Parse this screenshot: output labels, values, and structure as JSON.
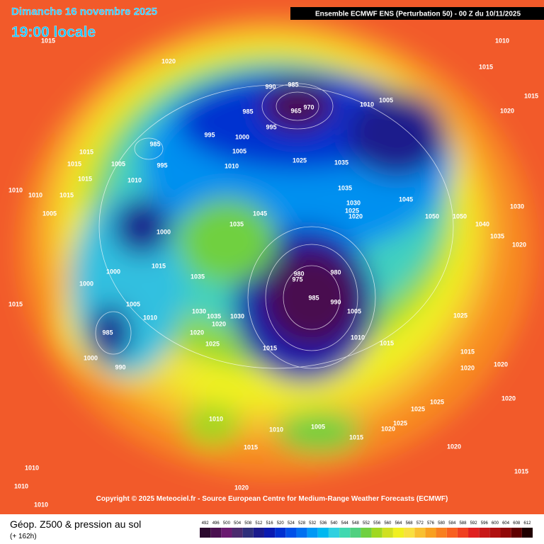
{
  "header": {
    "date": "Dimanche 16 novembre 2025",
    "time": "19:00 locale",
    "model": "Ensemble ECMWF ENS  (Perturbation 50)  - 00 Z du 10/11/2025"
  },
  "copyright": "Copyright © 2025 Meteociel.fr - Source European Centre for Medium-Range Weather Forecasts (ECMWF)",
  "legend": {
    "title": "Géop. Z500 & pression au sol",
    "lead": "(+ 162h)",
    "scale": [
      492,
      496,
      500,
      504,
      508,
      512,
      516,
      520,
      524,
      528,
      532,
      536,
      540,
      544,
      548,
      552,
      556,
      560,
      564,
      568,
      572,
      576,
      580,
      584,
      588,
      592,
      596,
      600,
      604,
      608,
      612
    ],
    "colors": [
      "#2b0a2e",
      "#4a1050",
      "#6a1a70",
      "#4b2a6e",
      "#2e2e7a",
      "#1a1a8c",
      "#0a1ab0",
      "#0030d0",
      "#0050e8",
      "#0070f0",
      "#0098f5",
      "#00b8f0",
      "#30d0e0",
      "#40d8b0",
      "#50d080",
      "#70d040",
      "#a0d820",
      "#d0e020",
      "#f0f020",
      "#f8e040",
      "#f8c030",
      "#f8a020",
      "#f88020",
      "#f86020",
      "#f04020",
      "#e02020",
      "#c81818",
      "#b01010",
      "#900808",
      "#600000",
      "#200000"
    ]
  },
  "pressure_labels": [
    "1015",
    "1020",
    "1010",
    "1015",
    "1015",
    "1020",
    "990",
    "985",
    "965",
    "970",
    "985",
    "995",
    "1005",
    "1010",
    "1000",
    "995",
    "1005",
    "1010",
    "1025",
    "1035",
    "1035",
    "985",
    "995",
    "1015",
    "1015",
    "1005",
    "1010",
    "1015",
    "1010",
    "1010",
    "1015",
    "1005",
    "1000",
    "1045",
    "1035",
    "1030",
    "1025",
    "1020",
    "1045",
    "1050",
    "1050",
    "1040",
    "1035",
    "1030",
    "1020",
    "1000",
    "1000",
    "1015",
    "1035",
    "980",
    "980",
    "975",
    "985",
    "990",
    "1005",
    "1015",
    "1005",
    "1010",
    "1030",
    "1035",
    "1030",
    "1020",
    "1020",
    "1025",
    "985",
    "1000",
    "990",
    "1015",
    "1010",
    "1015",
    "1025",
    "1015",
    "1020",
    "1020",
    "1020",
    "1025",
    "1025",
    "1010",
    "1010",
    "1005",
    "1015",
    "1020",
    "1025",
    "1015",
    "1020",
    "1010",
    "1010",
    "1010",
    "1015",
    "1020"
  ]
}
